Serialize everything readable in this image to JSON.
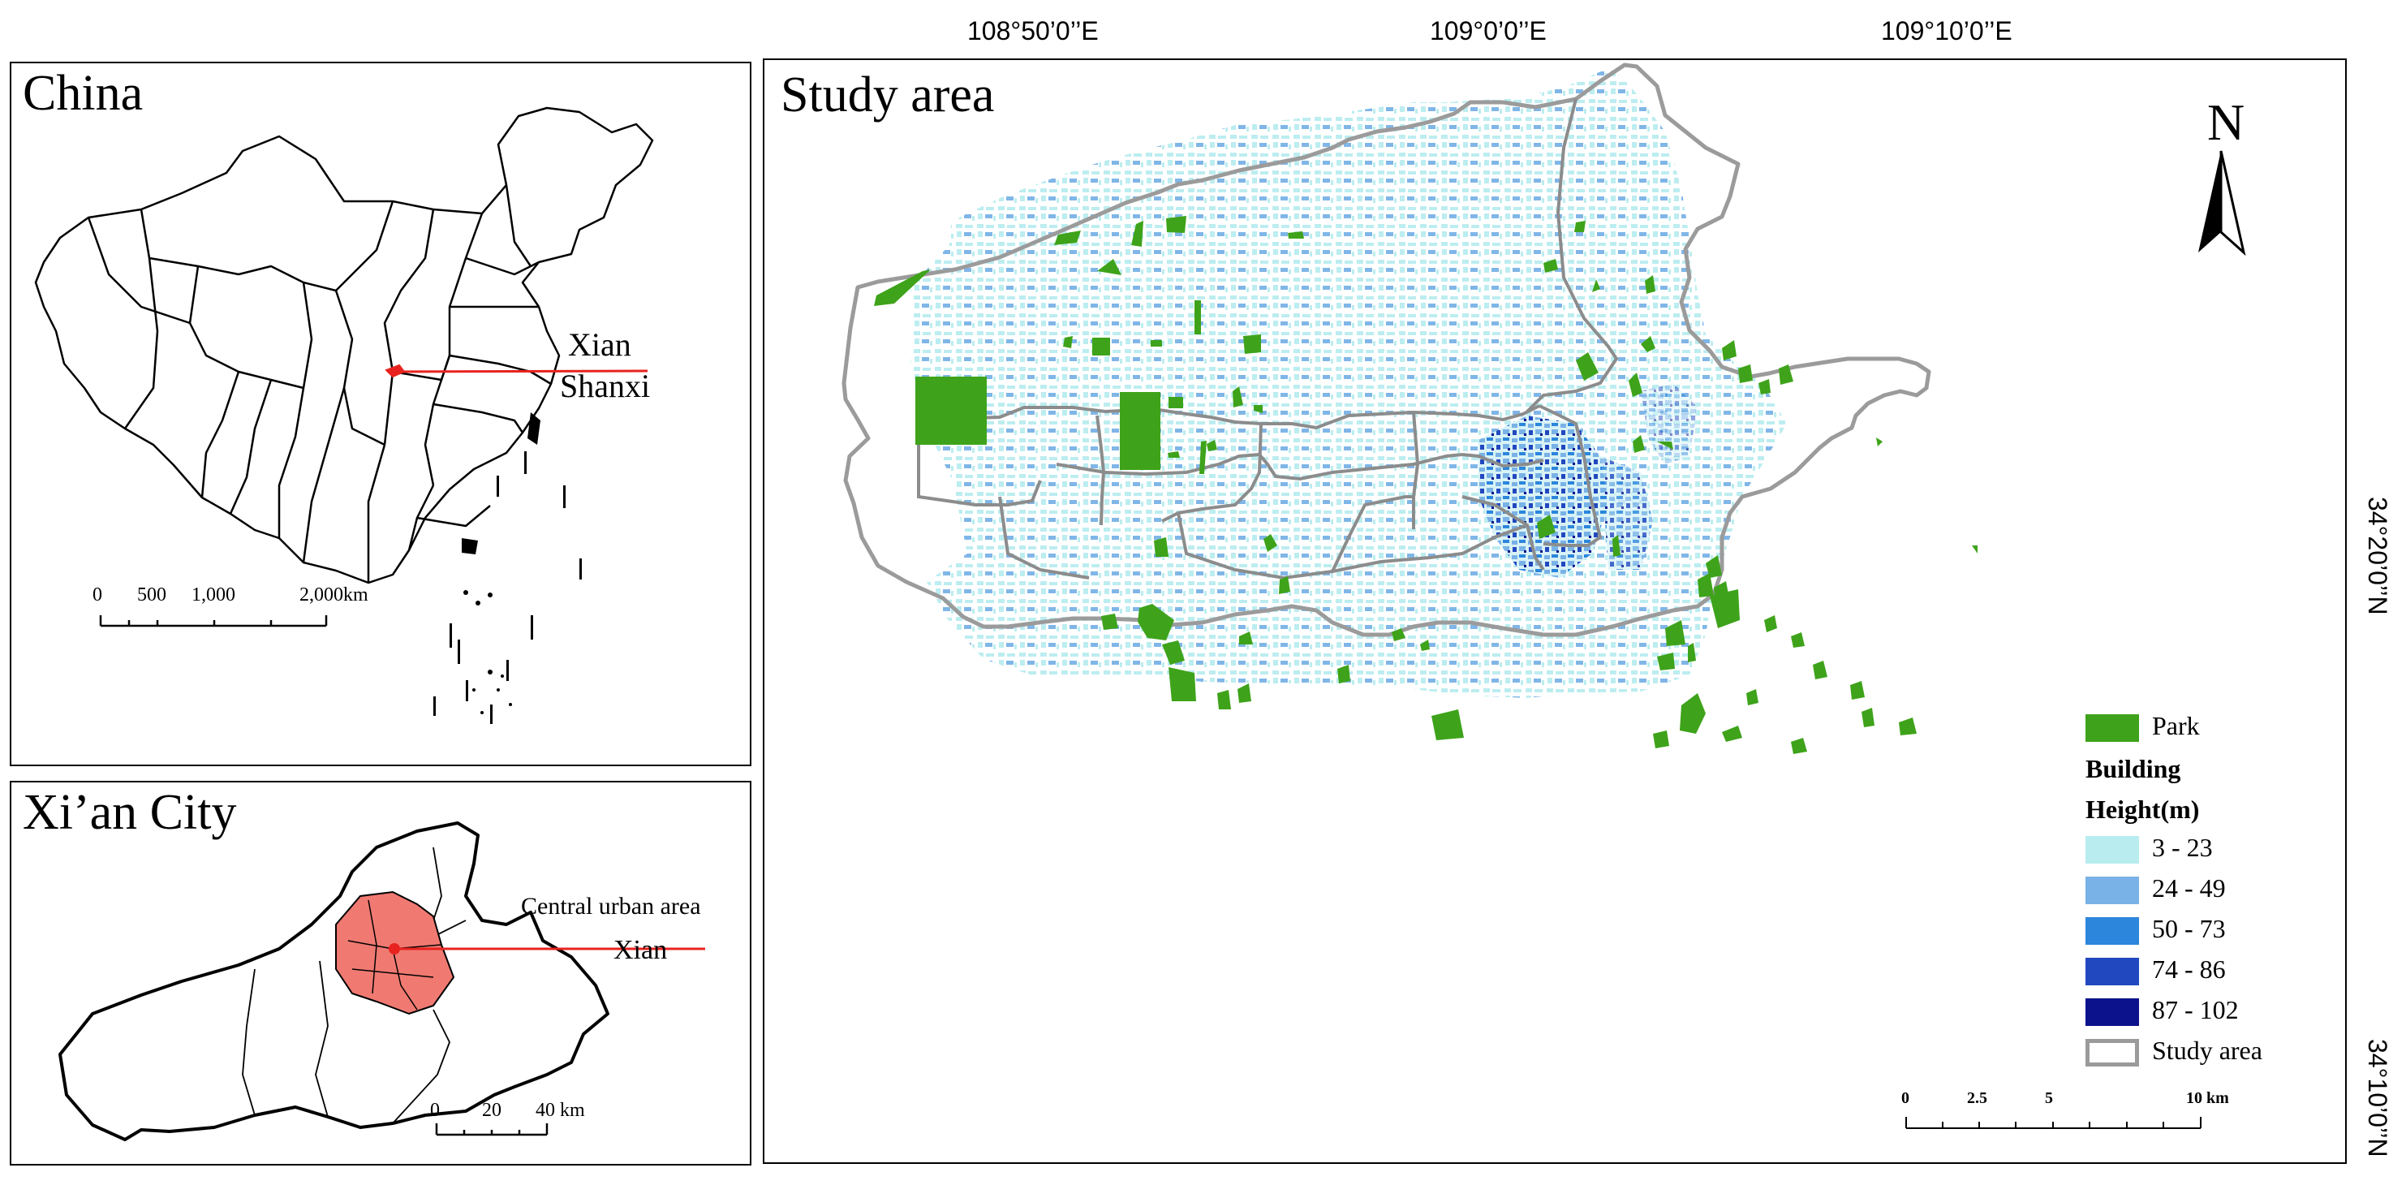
{
  "china_panel": {
    "title": "China",
    "labels": {
      "city": "Xian",
      "province": "Shanxi"
    },
    "scale": {
      "ticks": [
        "0",
        "500",
        "1,000",
        "2,000km"
      ]
    }
  },
  "xian_panel": {
    "title": "Xi’an  City",
    "labels": {
      "central": "Central urban area",
      "city": "Xian"
    },
    "scale": {
      "ticks": [
        "0",
        "20",
        "40 km"
      ]
    }
  },
  "study_panel": {
    "title": "Study area",
    "north": "N",
    "top_coords": [
      "108°50’0’’E",
      "109°0’0’’E",
      "109°10’0’’E"
    ],
    "right_coords": [
      "34°20’0’’N",
      "34°10’0’’N"
    ],
    "scale": {
      "ticks": [
        "0",
        "2.5",
        "5",
        "10 km"
      ]
    }
  },
  "legend": {
    "park": {
      "label": "Park",
      "color": "#3ea31a"
    },
    "heading_line1": "Building",
    "heading_line2": "Height(m)",
    "classes": [
      {
        "label": "3 - 23",
        "color": "#b8ecef"
      },
      {
        "label": "24 - 49",
        "color": "#79b2e6"
      },
      {
        "label": "50 - 73",
        "color": "#2b86dc"
      },
      {
        "label": "74 - 86",
        "color": "#2148bf"
      },
      {
        "label": "87 - 102",
        "color": "#0c128c"
      }
    ],
    "study_area": {
      "label": "Study area",
      "color": "#9b9b9b"
    }
  },
  "colors": {
    "highlight_red": "#e8231f",
    "urban_fill": "#f07a72"
  }
}
